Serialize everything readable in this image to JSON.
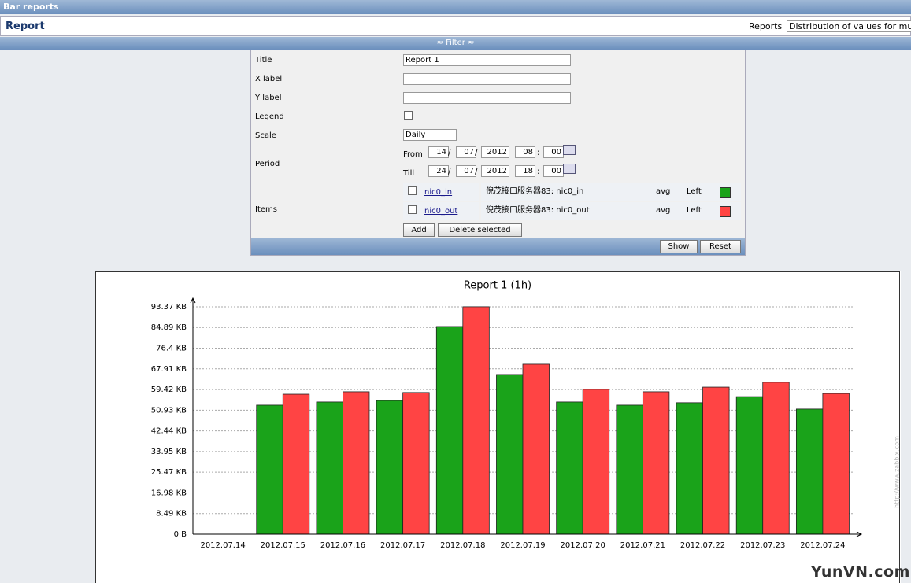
{
  "header": {
    "title": "Bar reports",
    "subtitle": "Report",
    "reports_label": "Reports",
    "reports_select": "Distribution of values for mu"
  },
  "filter": {
    "toggle": "≈ Filter ≈",
    "title_label": "Title",
    "title_value": "Report 1",
    "xlabel_label": "X label",
    "ylabel_label": "Y label",
    "legend_label": "Legend",
    "scale_label": "Scale",
    "scale_value": "Daily",
    "period_label": "Period",
    "from_label": "From",
    "from": [
      "14",
      "07",
      "2012",
      "08",
      "00"
    ],
    "till_label": "Till",
    "till": [
      "24",
      "07",
      "2012",
      "18",
      "00"
    ],
    "sep_date": "/",
    "sep_time": ":",
    "items_label": "Items",
    "items": [
      {
        "key": "nic0_in",
        "name": "倪茂接口服务器83: nic0_in",
        "func": "avg",
        "axis": "Left",
        "color": "#1aa31a"
      },
      {
        "key": "nic0_out",
        "name": "倪茂接口服务器83: nic0_out",
        "func": "avg",
        "axis": "Left",
        "color": "#ff4444"
      }
    ],
    "add": "Add",
    "delete": "Delete selected",
    "show": "Show",
    "reset": "Reset"
  },
  "chart_data": {
    "type": "bar",
    "title": "Report 1 (1h)",
    "credit": "http://www.zabbix.com",
    "categories": [
      "2012.07.14",
      "2012.07.15",
      "2012.07.16",
      "2012.07.17",
      "2012.07.18",
      "2012.07.19",
      "2012.07.20",
      "2012.07.21",
      "2012.07.22",
      "2012.07.23",
      "2012.07.24"
    ],
    "series": [
      {
        "name": "nic0_in",
        "color": "#1aa31a",
        "values": [
          0,
          53.0,
          54.3,
          54.9,
          85.3,
          65.6,
          54.3,
          53.0,
          54.0,
          56.5,
          51.4
        ]
      },
      {
        "name": "nic0_out",
        "color": "#ff4444",
        "values": [
          0,
          57.5,
          58.5,
          58.2,
          93.4,
          69.8,
          59.5,
          58.5,
          60.4,
          62.4,
          57.8
        ]
      }
    ],
    "ylim": [
      0,
      93.37
    ],
    "yticks": [
      {
        "value": 0,
        "label": "0 B"
      },
      {
        "value": 8.49,
        "label": "8.49 KB"
      },
      {
        "value": 16.98,
        "label": "16.98 KB"
      },
      {
        "value": 25.47,
        "label": "25.47 KB"
      },
      {
        "value": 33.95,
        "label": "33.95 KB"
      },
      {
        "value": 42.44,
        "label": "42.44 KB"
      },
      {
        "value": 50.93,
        "label": "50.93 KB"
      },
      {
        "value": 59.42,
        "label": "59.42 KB"
      },
      {
        "value": 67.91,
        "label": "67.91 KB"
      },
      {
        "value": 76.4,
        "label": "76.4 KB"
      },
      {
        "value": 84.89,
        "label": "84.89 KB"
      },
      {
        "value": 93.37,
        "label": "93.37 KB"
      }
    ],
    "grid": true
  },
  "watermark": "YunVN.com"
}
